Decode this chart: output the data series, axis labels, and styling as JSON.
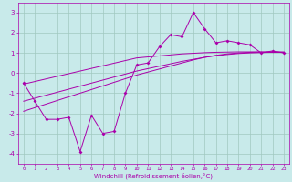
{
  "xlabel": "Windchill (Refroidissement éolien,°C)",
  "bg_color": "#c8eaea",
  "grid_color": "#a0c8c0",
  "line_color": "#aa00aa",
  "x_data": [
    0,
    1,
    2,
    3,
    4,
    5,
    6,
    7,
    8,
    9,
    10,
    11,
    12,
    13,
    14,
    15,
    16,
    17,
    18,
    19,
    20,
    21,
    22,
    23
  ],
  "y_measured": [
    -0.5,
    -1.4,
    -2.3,
    -2.3,
    -2.2,
    -3.9,
    -2.1,
    -3.0,
    -2.9,
    -1.0,
    0.4,
    0.5,
    1.3,
    1.9,
    1.8,
    3.0,
    2.2,
    1.5,
    1.6,
    1.5,
    1.4,
    1.0,
    1.1,
    1.0
  ],
  "y_linear1": [
    -0.55,
    -0.42,
    -0.29,
    -0.16,
    -0.03,
    0.1,
    0.23,
    0.36,
    0.49,
    0.62,
    0.75,
    0.8,
    0.85,
    0.9,
    0.95,
    0.98,
    1.01,
    1.03,
    1.04,
    1.05,
    1.05,
    1.05,
    1.05,
    1.04
  ],
  "y_linear2": [
    -1.4,
    -1.25,
    -1.1,
    -0.95,
    -0.8,
    -0.65,
    -0.5,
    -0.35,
    -0.2,
    -0.05,
    0.1,
    0.22,
    0.34,
    0.46,
    0.58,
    0.68,
    0.78,
    0.86,
    0.92,
    0.97,
    1.0,
    1.02,
    1.03,
    1.03
  ],
  "y_linear3": [
    -1.9,
    -1.72,
    -1.54,
    -1.36,
    -1.18,
    -1.0,
    -0.82,
    -0.64,
    -0.46,
    -0.28,
    -0.1,
    0.05,
    0.2,
    0.35,
    0.5,
    0.65,
    0.78,
    0.88,
    0.95,
    1.0,
    1.03,
    1.04,
    1.04,
    1.04
  ],
  "ylim": [
    -4.5,
    3.5
  ],
  "xlim": [
    -0.5,
    23.5
  ],
  "yticks": [
    -4,
    -3,
    -2,
    -1,
    0,
    1,
    2,
    3
  ]
}
